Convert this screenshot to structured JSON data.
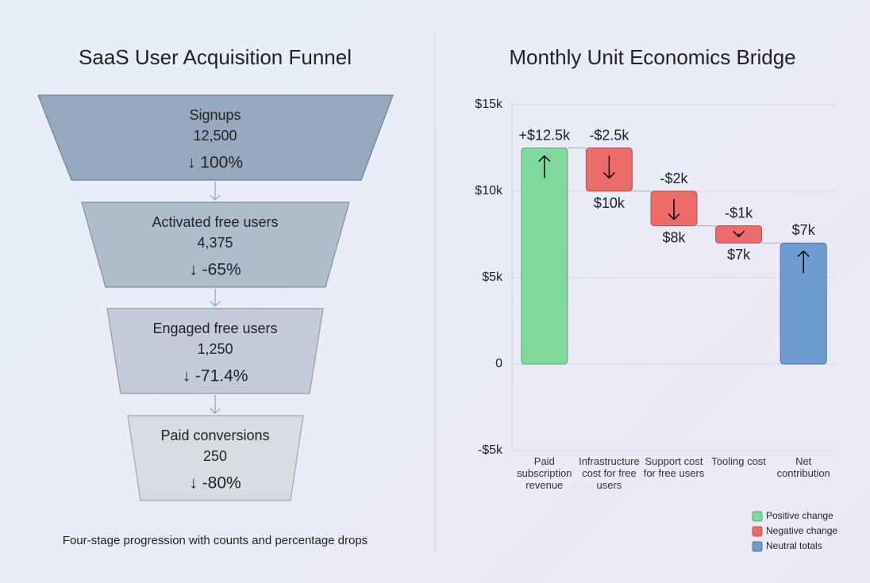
{
  "chart_data": [
    {
      "type": "funnel",
      "title": "SaaS User Acquisition Funnel",
      "categories": [
        "Signups",
        "Activated free users",
        "Engaged free users",
        "Paid conversions"
      ],
      "values": [
        12500,
        4375,
        1250,
        250
      ],
      "value_labels": [
        "12,500",
        "4,375",
        "1,250",
        "250"
      ],
      "changes": [
        100,
        -65,
        -71.4,
        -80
      ],
      "change_labels": [
        "↓ 100%",
        "↓ -65%",
        "↓ -71.4%",
        "↓ -80%"
      ],
      "colors": [
        "#97a9be",
        "#aebccc",
        "#c3ccd8",
        "#d7dce3"
      ],
      "caption": "Four-stage progression with counts and percentage drops"
    },
    {
      "type": "waterfall",
      "title": "Monthly Unit Economics Bridge",
      "categories": [
        "Paid subscription revenue",
        "Infrastructure cost for free users",
        "Support cost for free users",
        "Tooling cost",
        "Net contribution"
      ],
      "values": [
        12500,
        -2500,
        -2000,
        -1000,
        7000
      ],
      "value_labels": [
        "+$12.5k",
        "-$2.5k",
        "-$2k",
        "-$1k",
        "$7k"
      ],
      "subtotal_labels": [
        null,
        "$10k",
        "$8k",
        "$7k",
        null
      ],
      "measure": [
        "relative",
        "relative",
        "relative",
        "relative",
        "total"
      ],
      "bar_colors": [
        "#7fd99b",
        "#ec6b6b",
        "#ec6b6b",
        "#ec6b6b",
        "#6f9bd1"
      ],
      "ylim": [
        -5000,
        15000
      ],
      "yticks": [
        {
          "value": -5000,
          "label": "-$5k"
        },
        0,
        {
          "value": 5000,
          "label": "$5k"
        },
        {
          "value": 10000,
          "label": "$10k"
        },
        {
          "value": 15000,
          "label": "$15k"
        }
      ],
      "grid": true,
      "legend_position": "lower right",
      "legend": [
        {
          "name": "Positive change",
          "color": "#7fd99b"
        },
        {
          "name": "Negative change",
          "color": "#ec6b6b"
        },
        {
          "name": "Neutral totals",
          "color": "#6f9bd1"
        }
      ]
    }
  ]
}
